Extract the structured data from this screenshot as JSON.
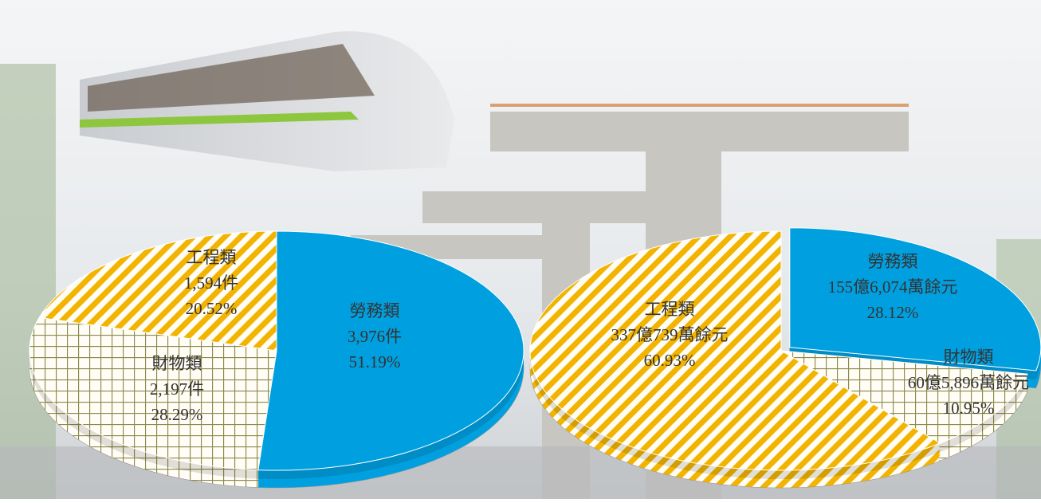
{
  "chart_data": [
    {
      "type": "pie",
      "categories": [
        "勞務類",
        "財物類",
        "工程類"
      ],
      "values": [
        51.19,
        28.29,
        20.52
      ],
      "value_labels": [
        "51.19%",
        "28.29%",
        "20.52%"
      ],
      "counts": [
        3976,
        2197,
        1594
      ],
      "count_labels": [
        "3,976件",
        "2,197件",
        "1,594件"
      ],
      "colors": [
        "#00a0e0",
        "#8c8a4c",
        "#f2b400"
      ],
      "patterns": [
        "solid",
        "grid",
        "stripes"
      ]
    },
    {
      "type": "pie",
      "categories": [
        "勞務類",
        "財物類",
        "工程類"
      ],
      "values": [
        28.12,
        10.95,
        60.93
      ],
      "value_labels": [
        "28.12%",
        "10.95%",
        "60.93%"
      ],
      "counts": [
        1556074,
        605896,
        3370739
      ],
      "count_labels": [
        "155億6,074萬餘元",
        "60億5,896萬餘元",
        "337億739萬餘元"
      ],
      "colors": [
        "#00a0e0",
        "#8c8a4c",
        "#f2b400"
      ],
      "patterns": [
        "solid",
        "grid",
        "stripes"
      ]
    }
  ]
}
